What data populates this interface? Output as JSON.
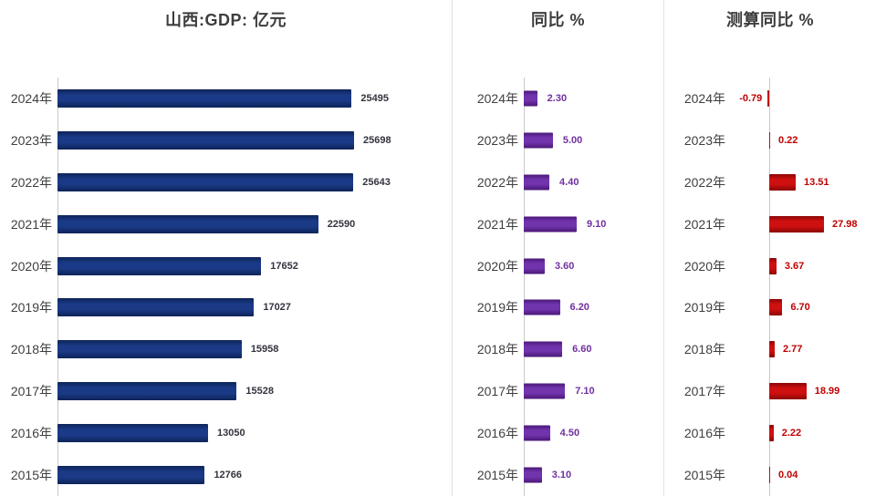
{
  "page": {
    "background": "#ffffff",
    "divider_color": "#e2e2e2"
  },
  "chart_data": [
    {
      "type": "bar",
      "orientation": "horizontal",
      "title": "山西:GDP: 亿元",
      "categories": [
        "2024年",
        "2023年",
        "2022年",
        "2021年",
        "2020年",
        "2019年",
        "2018年",
        "2017年",
        "2016年",
        "2015年"
      ],
      "values": [
        25495,
        25698,
        25643,
        22590,
        17652,
        17027,
        15958,
        15528,
        13050,
        12766
      ],
      "value_labels": [
        "25495",
        "25698",
        "25643",
        "22590",
        "17652",
        "17027",
        "15958",
        "15528",
        "13050",
        "12766"
      ],
      "xlim": [
        0,
        26000
      ],
      "grid": false,
      "legend": false,
      "bar_color": "#1a3a87",
      "bar_color_dark": "#0e2458",
      "value_color": "#33333f",
      "axis_color": "#c9c9c9",
      "category_color": "#3f3f3f"
    },
    {
      "type": "bar",
      "orientation": "horizontal",
      "title": "同比 %",
      "categories": [
        "2024年",
        "2023年",
        "2022年",
        "2021年",
        "2020年",
        "2019年",
        "2018年",
        "2017年",
        "2016年",
        "2015年"
      ],
      "values": [
        2.3,
        5.0,
        4.4,
        9.1,
        3.6,
        6.2,
        6.6,
        7.1,
        4.5,
        3.1
      ],
      "value_labels": [
        "2.30",
        "5.00",
        "4.40",
        "9.10",
        "3.60",
        "6.20",
        "6.60",
        "7.10",
        "4.50",
        "3.10"
      ],
      "xlim": [
        0,
        9.5
      ],
      "grid": false,
      "legend": false,
      "bar_color": "#7234ad",
      "bar_color_dark": "#4a1878",
      "value_color": "#7030a0",
      "axis_color": "#c9c9c9",
      "category_color": "#3f3f3f"
    },
    {
      "type": "bar",
      "orientation": "horizontal",
      "title": "测算同比 %",
      "categories": [
        "2024年",
        "2023年",
        "2022年",
        "2021年",
        "2020年",
        "2019年",
        "2018年",
        "2017年",
        "2016年",
        "2015年"
      ],
      "values": [
        -0.79,
        0.22,
        13.51,
        27.98,
        3.67,
        6.7,
        2.77,
        18.99,
        2.22,
        0.04
      ],
      "value_labels": [
        "-0.79",
        "0.22",
        "13.51",
        "27.98",
        "3.67",
        "6.70",
        "2.77",
        "18.99",
        "2.22",
        "0.04"
      ],
      "xlim": [
        -1,
        28
      ],
      "grid": false,
      "legend": false,
      "bar_color": "#cf1010",
      "bar_color_dark": "#8c0606",
      "value_color": "#c00000",
      "axis_color": "#c9c9c9",
      "category_color": "#3f3f3f"
    }
  ]
}
